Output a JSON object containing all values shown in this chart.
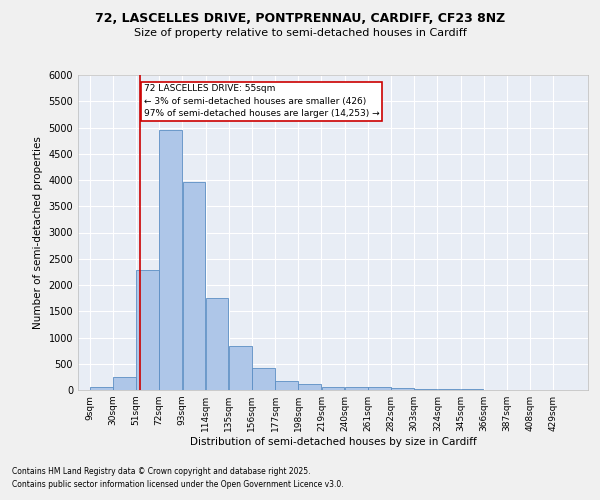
{
  "title_line1": "72, LASCELLES DRIVE, PONTPRENNAU, CARDIFF, CF23 8NZ",
  "title_line2": "Size of property relative to semi-detached houses in Cardiff",
  "xlabel": "Distribution of semi-detached houses by size in Cardiff",
  "ylabel": "Number of semi-detached properties",
  "footnote_line1": "Contains HM Land Registry data © Crown copyright and database right 2025.",
  "footnote_line2": "Contains public sector information licensed under the Open Government Licence v3.0.",
  "annotation_title": "72 LASCELLES DRIVE: 55sqm",
  "annotation_line1": "← 3% of semi-detached houses are smaller (426)",
  "annotation_line2": "97% of semi-detached houses are larger (14,253) →",
  "bar_color": "#aec6e8",
  "bar_edge_color": "#5b8ec4",
  "background_color": "#e8edf5",
  "grid_color": "#ffffff",
  "fig_background_color": "#f0f0f0",
  "annotation_box_color": "#cc0000",
  "vline_color": "#cc0000",
  "property_size_sqm": 55,
  "bin_edges": [
    9,
    30,
    51,
    72,
    93,
    114,
    135,
    156,
    177,
    198,
    219,
    240,
    261,
    282,
    303,
    324,
    345,
    366,
    387,
    408,
    429
  ],
  "bin_labels": [
    "9sqm",
    "30sqm",
    "51sqm",
    "72sqm",
    "93sqm",
    "114sqm",
    "135sqm",
    "156sqm",
    "177sqm",
    "198sqm",
    "219sqm",
    "240sqm",
    "261sqm",
    "282sqm",
    "303sqm",
    "324sqm",
    "345sqm",
    "366sqm",
    "387sqm",
    "408sqm",
    "429sqm"
  ],
  "bar_heights": [
    50,
    250,
    2280,
    4950,
    3970,
    1760,
    830,
    410,
    175,
    105,
    65,
    65,
    50,
    30,
    20,
    15,
    10,
    5,
    3,
    2
  ],
  "ylim": [
    0,
    6000
  ],
  "yticks": [
    0,
    500,
    1000,
    1500,
    2000,
    2500,
    3000,
    3500,
    4000,
    4500,
    5000,
    5500,
    6000
  ]
}
